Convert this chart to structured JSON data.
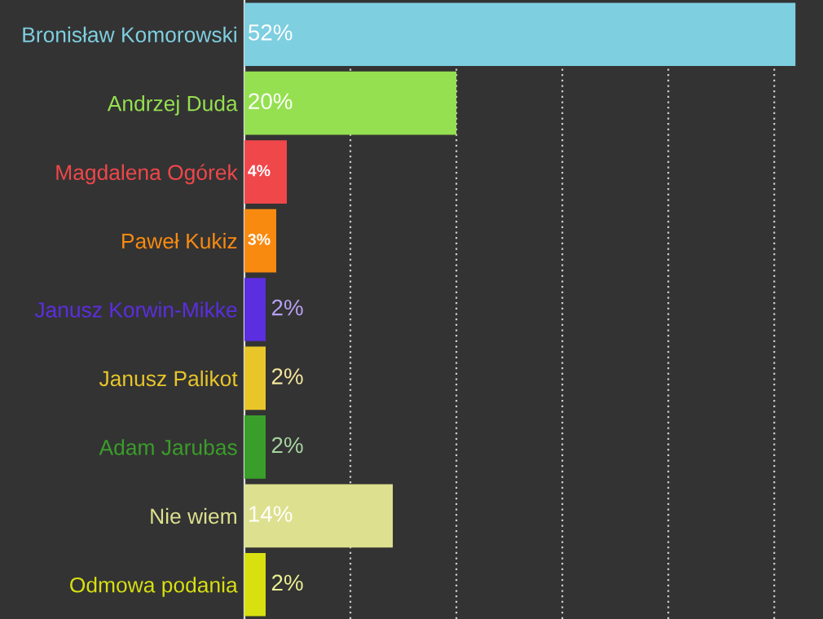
{
  "chart_data": {
    "type": "bar",
    "orientation": "horizontal",
    "categories": [
      "Bronisław Komorowski",
      "Andrzej Duda",
      "Magdalena Ogórek",
      "Paweł Kukiz",
      "Janusz Korwin-Mikke",
      "Janusz Palikot",
      "Adam Jarubas",
      "Nie wiem",
      "Odmowa podania"
    ],
    "values": [
      52,
      20,
      4,
      3,
      2,
      2,
      2,
      14,
      2
    ],
    "colors": [
      "#7ecfe0",
      "#95e050",
      "#f0474a",
      "#f98a10",
      "#5b2ee0",
      "#e8c62a",
      "#3a9e2a",
      "#dde08e",
      "#d8e010"
    ],
    "value_labels": [
      "52%",
      "20%",
      "4%",
      "3%",
      "2%",
      "2%",
      "2%",
      "14%",
      "2%"
    ],
    "xlim": [
      0,
      54.6
    ],
    "xticks": [
      {
        "value": 0,
        "label": null
      },
      {
        "value": 10,
        "label": null
      },
      {
        "value": 20,
        "label": null
      },
      {
        "value": 30,
        "label": null
      },
      {
        "value": 40,
        "label": null
      },
      {
        "value": 50,
        "label": null
      }
    ],
    "grid": "x",
    "tick_labels": "y",
    "legend": false
  }
}
